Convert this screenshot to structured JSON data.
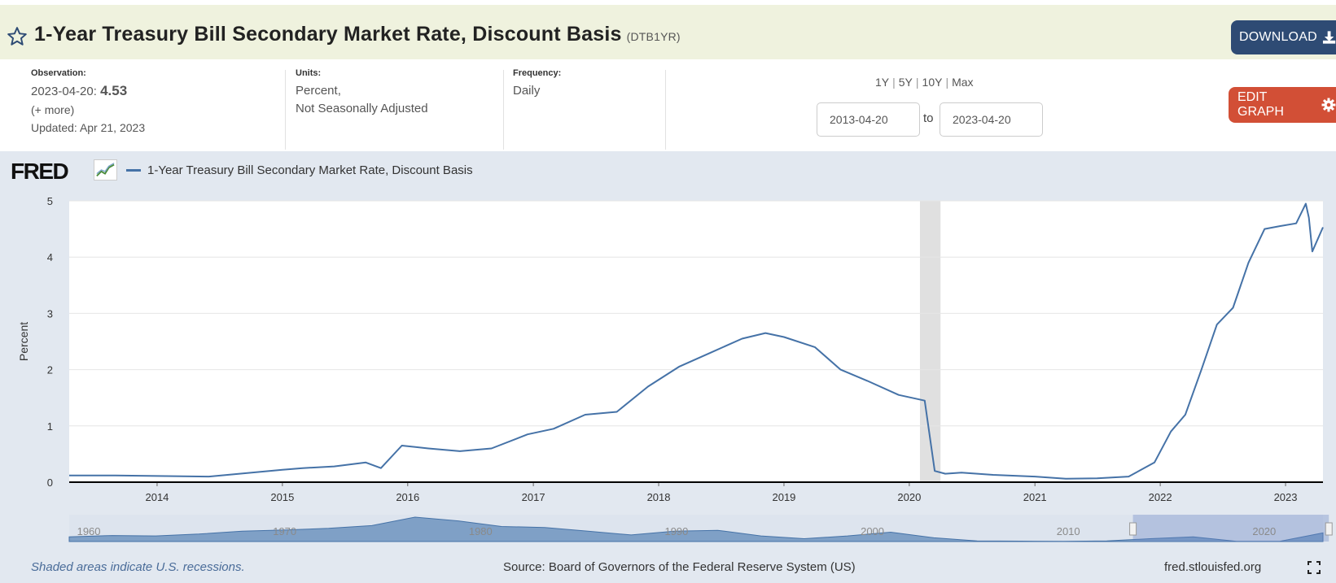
{
  "header": {
    "title": "1-Year Treasury Bill Secondary Market Rate, Discount Basis",
    "series_id": "(DTB1YR)",
    "download_label": "DOWNLOAD",
    "icons": {
      "favorite": "star-icon",
      "download": "download-icon"
    }
  },
  "observation": {
    "label": "Observation:",
    "date": "2023-04-20:",
    "value": "4.53",
    "more": "(+ more)",
    "updated": "Updated: Apr 21, 2023"
  },
  "units": {
    "label": "Units:",
    "line1": "Percent,",
    "line2": "Not Seasonally Adjusted"
  },
  "frequency": {
    "label": "Frequency:",
    "value": "Daily"
  },
  "ranges": [
    "1Y",
    "5Y",
    "10Y",
    "Max"
  ],
  "date_range": {
    "start": "2013-04-20",
    "to": "to",
    "end": "2023-04-20"
  },
  "edit_graph_label": "EDIT GRAPH",
  "logo_text": "FRED",
  "footer": {
    "recession_note": "Shaded areas indicate U.S. recessions.",
    "source": "Source: Board of Governors of the Federal Reserve System (US)",
    "site": "fred.stlouisfed.org"
  },
  "colors": {
    "series": "#4572a7",
    "header_bg": "#eff2de",
    "download_bg": "#2e4b74",
    "edit_bg": "#d24f36",
    "graph_bg": "#e2e8f0",
    "recession": "#e0e0e0"
  },
  "chart_data": {
    "type": "line",
    "legend": [
      "1-Year Treasury Bill Secondary Market Rate, Discount Basis"
    ],
    "ylabel": "Percent",
    "ylim": [
      0,
      5
    ],
    "yticks": [
      "0",
      "1",
      "2",
      "3",
      "4",
      "5"
    ],
    "xlim": [
      "2013-04-20",
      "2023-04-20"
    ],
    "xticks": [
      "2014",
      "2015",
      "2016",
      "2017",
      "2018",
      "2019",
      "2020",
      "2021",
      "2022",
      "2023"
    ],
    "grid": true,
    "recessions": [
      {
        "start": "2020-02-01",
        "end": "2020-04-01"
      }
    ],
    "series": [
      {
        "name": "1-Year Treasury Bill Secondary Market Rate, Discount Basis",
        "x": [
          "2013-04-20",
          "2013-09-01",
          "2014-01-01",
          "2014-06-01",
          "2015-01-01",
          "2015-03-01",
          "2015-06-01",
          "2015-09-01",
          "2015-10-15",
          "2015-12-15",
          "2016-03-01",
          "2016-06-01",
          "2016-09-01",
          "2016-12-15",
          "2017-03-01",
          "2017-06-01",
          "2017-09-01",
          "2017-12-01",
          "2018-03-01",
          "2018-06-01",
          "2018-09-01",
          "2018-11-08",
          "2019-01-01",
          "2019-04-01",
          "2019-06-15",
          "2019-09-01",
          "2019-12-01",
          "2020-02-15",
          "2020-03-15",
          "2020-04-15",
          "2020-06-01",
          "2020-09-01",
          "2021-01-01",
          "2021-04-01",
          "2021-07-01",
          "2021-10-01",
          "2021-12-15",
          "2022-02-01",
          "2022-03-15",
          "2022-05-01",
          "2022-06-15",
          "2022-08-01",
          "2022-09-15",
          "2022-11-01",
          "2022-12-15",
          "2023-02-01",
          "2023-03-01",
          "2023-03-10",
          "2023-03-20",
          "2023-04-20"
        ],
        "values": [
          0.12,
          0.12,
          0.11,
          0.1,
          0.22,
          0.25,
          0.28,
          0.35,
          0.25,
          0.65,
          0.6,
          0.55,
          0.6,
          0.85,
          0.95,
          1.2,
          1.25,
          1.7,
          2.05,
          2.3,
          2.55,
          2.65,
          2.58,
          2.4,
          2.0,
          1.8,
          1.55,
          1.45,
          0.2,
          0.15,
          0.17,
          0.13,
          0.1,
          0.06,
          0.07,
          0.1,
          0.35,
          0.9,
          1.2,
          2.0,
          2.8,
          3.1,
          3.9,
          4.5,
          4.55,
          4.6,
          4.95,
          4.7,
          4.1,
          4.53
        ]
      }
    ],
    "navigator": {
      "labels": [
        "1960",
        "1970",
        "1980",
        "1990",
        "2000",
        "2010",
        "2020"
      ],
      "values": [
        2.5,
        3.2,
        3.0,
        4.0,
        5.5,
        6.2,
        7.0,
        8.5,
        13.0,
        11.0,
        8.0,
        7.5,
        5.5,
        3.5,
        5.5,
        6.0,
        3.0,
        1.5,
        3.0,
        5.0,
        2.0,
        0.3,
        0.2,
        0.1,
        0.3,
        1.5,
        2.5,
        0.1,
        0.1,
        4.6
      ],
      "range": [
        1959,
        2023
      ]
    }
  }
}
